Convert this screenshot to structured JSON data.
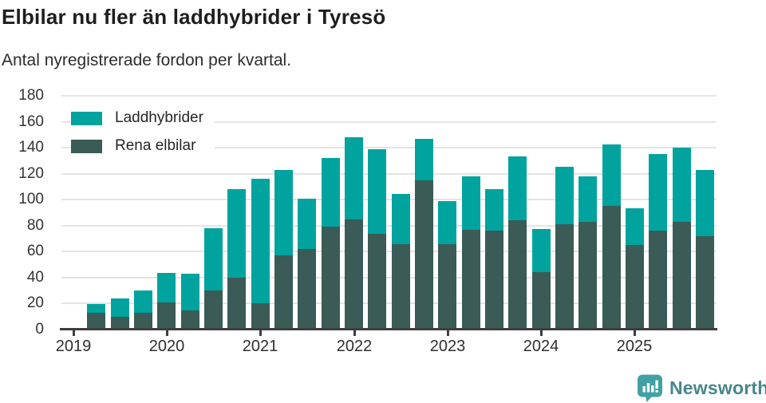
{
  "header": {
    "title": "Elbilar nu fler än laddhybrider i Tyresö",
    "subtitle": "Antal nyregistrerade fordon per kvartal."
  },
  "colors": {
    "laddhybrider": "#00a39e",
    "rena_elbilar": "#3a5b56",
    "grid": "#e4e4e4",
    "axis": "#3e3e3e",
    "brand_icon": "#42a1a3",
    "brand_text": "#46868c"
  },
  "legend": {
    "items": [
      {
        "label": "Laddhybrider",
        "color_key": "laddhybrider"
      },
      {
        "label": "Rena elbilar",
        "color_key": "rena_elbilar"
      }
    ]
  },
  "footer": {
    "brand": "Newsworthy",
    "logo_icon": "newsworthy-speech-bubble-bar-chart-icon"
  },
  "chart_data": {
    "type": "bar",
    "stacked": true,
    "title": "Elbilar nu fler än laddhybrider i Tyresö",
    "subtitle": "Antal nyregistrerade fordon per kvartal.",
    "x_unit": "quarter",
    "categories": [
      "2019 Q1",
      "2019 Q2",
      "2019 Q3",
      "2019 Q4",
      "2020 Q1",
      "2020 Q2",
      "2020 Q3",
      "2020 Q4",
      "2021 Q1",
      "2021 Q2",
      "2021 Q3",
      "2021 Q4",
      "2022 Q1",
      "2022 Q2",
      "2022 Q3",
      "2022 Q4",
      "2023 Q1",
      "2023 Q2",
      "2023 Q3",
      "2023 Q4",
      "2024 Q1",
      "2024 Q2",
      "2024 Q3",
      "2024 Q4",
      "2025 Q1",
      "2025 Q2",
      "2025 Q3",
      "2025 Q4"
    ],
    "series": [
      {
        "name": "Rena elbilar",
        "color_key": "rena_elbilar",
        "values": [
          null,
          13,
          10,
          13,
          21,
          15,
          30,
          40,
          20,
          57,
          62,
          79,
          85,
          74,
          66,
          115,
          66,
          77,
          76,
          84,
          44,
          81,
          83,
          95,
          65,
          76,
          83,
          72
        ]
      },
      {
        "name": "Laddhybrider",
        "color_key": "laddhybrider",
        "values": [
          null,
          7,
          14,
          17,
          23,
          28,
          48,
          68,
          96,
          66,
          39,
          53,
          63,
          65,
          39,
          32,
          33,
          41,
          32,
          49,
          33,
          44,
          35,
          47,
          28,
          59,
          57,
          51
        ]
      }
    ],
    "totals": [
      null,
      20,
      24,
      30,
      44,
      43,
      78,
      108,
      116,
      123,
      101,
      132,
      148,
      139,
      105,
      147,
      99,
      118,
      108,
      133,
      77,
      125,
      118,
      142,
      93,
      135,
      140,
      123
    ],
    "ylim": [
      0,
      180
    ],
    "yticks": [
      0,
      20,
      40,
      60,
      80,
      100,
      120,
      140,
      160,
      180
    ],
    "year_labels": [
      "2019",
      "2020",
      "2021",
      "2022",
      "2023",
      "2024",
      "2025"
    ],
    "grid": "horizontal",
    "legend_position": "top-left"
  }
}
